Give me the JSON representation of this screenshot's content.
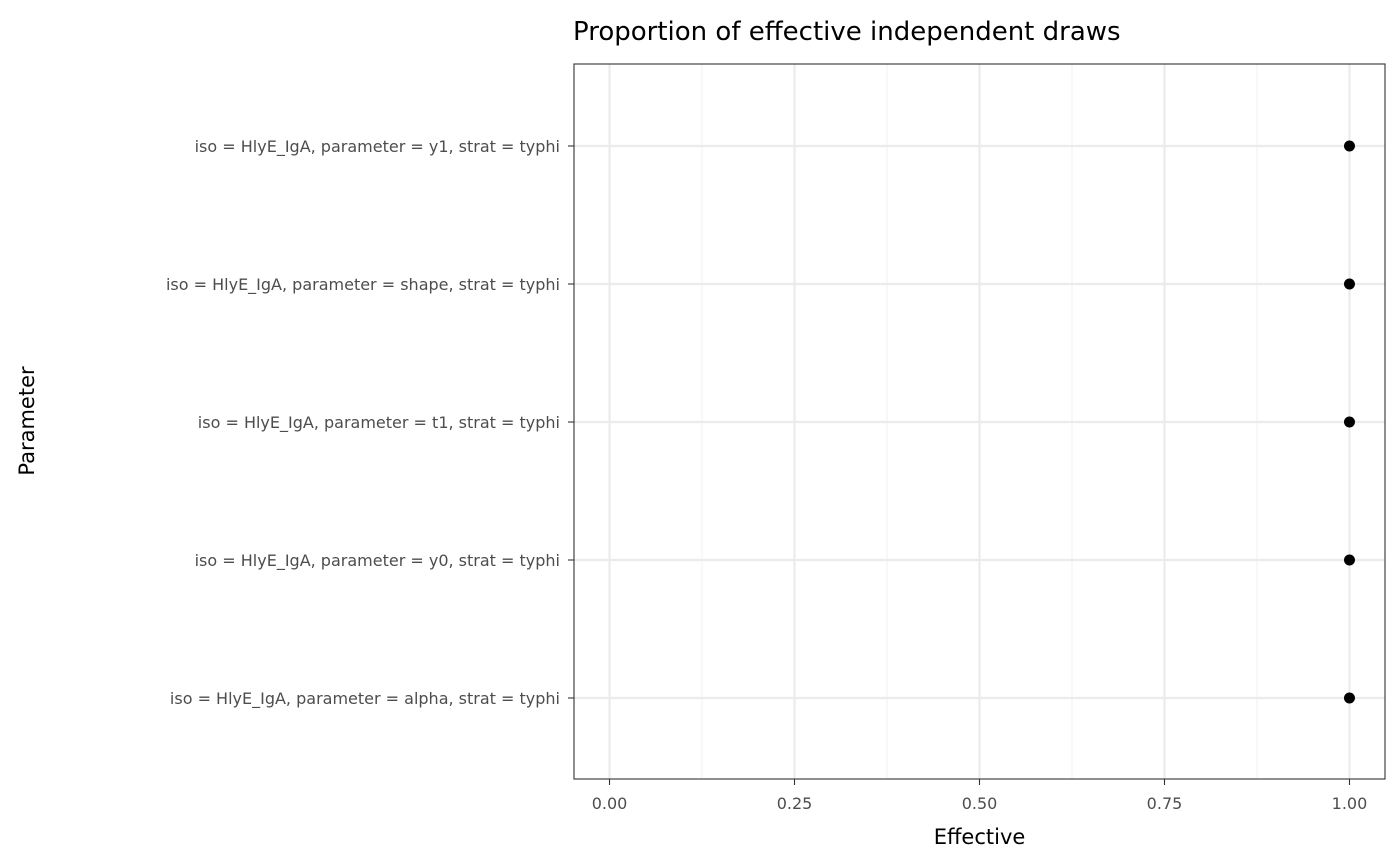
{
  "chart_data": {
    "type": "scatter",
    "title": "Proportion of effective independent draws",
    "xlabel": "Effective",
    "ylabel": "Parameter",
    "xlim": [
      -0.048,
      1.048
    ],
    "xticks": [
      0.0,
      0.25,
      0.5,
      0.75,
      1.0
    ],
    "xtick_labels": [
      "0.00",
      "0.25",
      "0.50",
      "0.75",
      "1.00"
    ],
    "categories": [
      "iso = HlyE_IgA, parameter = y1, strat = typhi",
      "iso = HlyE_IgA, parameter = shape, strat = typhi",
      "iso = HlyE_IgA, parameter = t1, strat = typhi",
      "iso = HlyE_IgA, parameter = y0, strat = typhi",
      "iso = HlyE_IgA, parameter = alpha, strat = typhi"
    ],
    "values": [
      1.0,
      1.0,
      1.0,
      1.0,
      1.0
    ],
    "grid": true,
    "theme": "black-and-white",
    "colors": {
      "points": "#000000",
      "grid_major": "#ebebeb",
      "grid_minor": "#f2f2f2",
      "panel_border": "#333333",
      "tick_text": "#4d4d4d"
    }
  }
}
